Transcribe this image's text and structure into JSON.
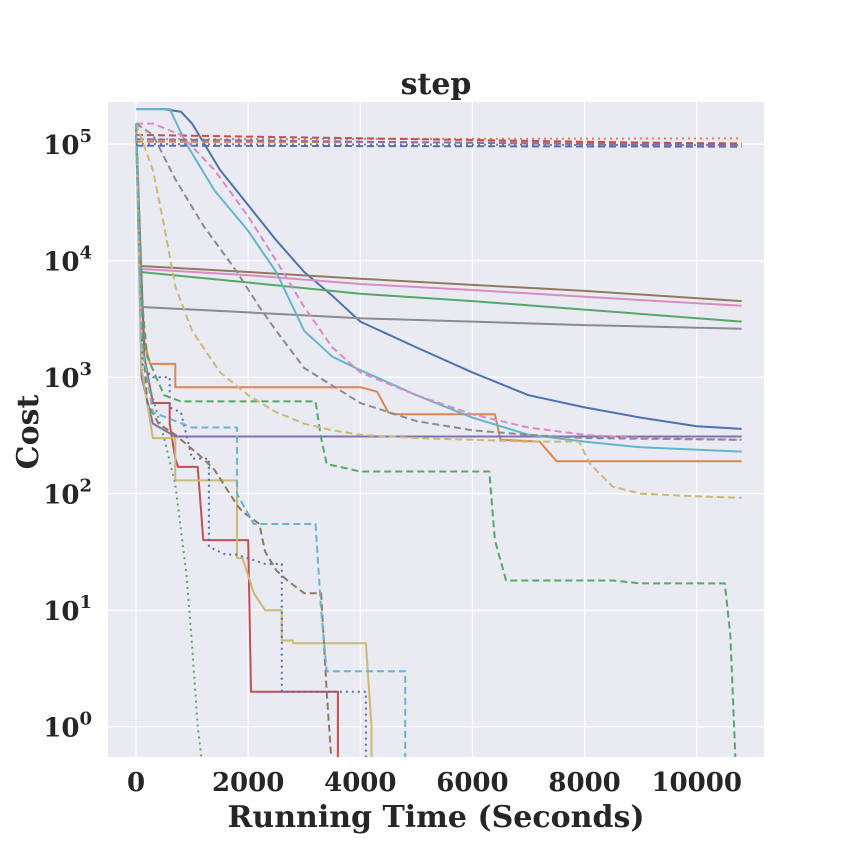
{
  "chart_data": {
    "type": "line",
    "title": "step",
    "xlabel": "Running Time (Seconds)",
    "ylabel": "Cost",
    "xscale": "linear",
    "yscale": "log",
    "xlim": [
      -500,
      11200
    ],
    "ylim": [
      0.55,
      230000
    ],
    "grid": true,
    "xticks": [
      0,
      2000,
      4000,
      6000,
      8000,
      10000
    ],
    "yticks": [
      {
        "value": 1,
        "base": "10",
        "exp": "0"
      },
      {
        "value": 10,
        "base": "10",
        "exp": "1"
      },
      {
        "value": 100,
        "base": "10",
        "exp": "2"
      },
      {
        "value": 1000,
        "base": "10",
        "exp": "3"
      },
      {
        "value": 10000,
        "base": "10",
        "exp": "4"
      },
      {
        "value": 100000,
        "base": "10",
        "exp": "5"
      }
    ],
    "colors": {
      "plot_background": "#eaeaf2",
      "grid": "#ffffff",
      "text": "#262626"
    },
    "series": [
      {
        "color": "#4c72b0",
        "style": "solid",
        "points": [
          [
            0,
            200000
          ],
          [
            500,
            200000
          ],
          [
            800,
            190000
          ],
          [
            1000,
            150000
          ],
          [
            1500,
            60000
          ],
          [
            2000,
            30000
          ],
          [
            2500,
            15000
          ],
          [
            3000,
            8000
          ],
          [
            3500,
            5000
          ],
          [
            4000,
            3000
          ],
          [
            5000,
            1800
          ],
          [
            6000,
            1100
          ],
          [
            7000,
            700
          ],
          [
            8000,
            550
          ],
          [
            9000,
            450
          ],
          [
            10000,
            380
          ],
          [
            10800,
            360
          ]
        ]
      },
      {
        "color": "#dd8452",
        "style": "solid",
        "points": [
          [
            0,
            150000
          ],
          [
            80,
            8000
          ],
          [
            150,
            2000
          ],
          [
            250,
            1300
          ],
          [
            700,
            1300
          ],
          [
            700,
            820
          ],
          [
            4000,
            820
          ],
          [
            4300,
            750
          ],
          [
            4500,
            500
          ],
          [
            4600,
            480
          ],
          [
            6400,
            480
          ],
          [
            6500,
            290
          ],
          [
            7200,
            280
          ],
          [
            7500,
            190
          ],
          [
            10800,
            190
          ]
        ]
      },
      {
        "color": "#55a868",
        "style": "solid",
        "points": [
          [
            0,
            150000
          ],
          [
            80,
            8000
          ],
          [
            2000,
            6500
          ],
          [
            4000,
            5200
          ],
          [
            6000,
            4500
          ],
          [
            8000,
            3800
          ],
          [
            10800,
            3000
          ]
        ]
      },
      {
        "color": "#c44e52",
        "style": "solid",
        "points": [
          [
            0,
            150000
          ],
          [
            150,
            1500
          ],
          [
            300,
            600
          ],
          [
            600,
            600
          ],
          [
            600,
            400
          ],
          [
            700,
            200
          ],
          [
            750,
            170
          ],
          [
            1100,
            170
          ],
          [
            1200,
            40
          ],
          [
            2000,
            40
          ],
          [
            2050,
            2
          ],
          [
            3600,
            2
          ],
          [
            3600,
            0.4
          ]
        ]
      },
      {
        "color": "#8172b3",
        "style": "solid",
        "points": [
          [
            0,
            150000
          ],
          [
            100,
            1000
          ],
          [
            300,
            400
          ],
          [
            700,
            310
          ],
          [
            10800,
            310
          ]
        ]
      },
      {
        "color": "#937860",
        "style": "solid",
        "points": [
          [
            0,
            150000
          ],
          [
            80,
            9000
          ],
          [
            2000,
            8000
          ],
          [
            4000,
            7000
          ],
          [
            6000,
            6200
          ],
          [
            8000,
            5500
          ],
          [
            10800,
            4500
          ]
        ]
      },
      {
        "color": "#da8bc3",
        "style": "solid",
        "points": [
          [
            0,
            150000
          ],
          [
            80,
            8500
          ],
          [
            2000,
            7500
          ],
          [
            4000,
            6300
          ],
          [
            6000,
            5600
          ],
          [
            8000,
            4900
          ],
          [
            10800,
            4100
          ]
        ]
      },
      {
        "color": "#8c8c8c",
        "style": "solid",
        "points": [
          [
            0,
            150000
          ],
          [
            100,
            4000
          ],
          [
            2000,
            3600
          ],
          [
            4000,
            3200
          ],
          [
            6000,
            3000
          ],
          [
            8000,
            2800
          ],
          [
            10800,
            2600
          ]
        ]
      },
      {
        "color": "#ccb974",
        "style": "solid",
        "points": [
          [
            0,
            150000
          ],
          [
            100,
            1200
          ],
          [
            300,
            300
          ],
          [
            700,
            300
          ],
          [
            700,
            130
          ],
          [
            1800,
            130
          ],
          [
            1800,
            28
          ],
          [
            1900,
            28
          ],
          [
            2100,
            14
          ],
          [
            2300,
            10
          ],
          [
            2600,
            10
          ],
          [
            2600,
            5.5
          ],
          [
            2800,
            5.5
          ],
          [
            2800,
            5.2
          ],
          [
            4100,
            5.2
          ],
          [
            4200,
            1
          ],
          [
            4200,
            0.4
          ]
        ]
      },
      {
        "color": "#64b5cd",
        "style": "solid",
        "points": [
          [
            0,
            200000
          ],
          [
            600,
            200000
          ],
          [
            900,
            100000
          ],
          [
            1400,
            40000
          ],
          [
            2000,
            18000
          ],
          [
            2500,
            8000
          ],
          [
            3000,
            2500
          ],
          [
            3500,
            1500
          ],
          [
            4000,
            1150
          ],
          [
            4500,
            900
          ],
          [
            5000,
            700
          ],
          [
            6000,
            450
          ],
          [
            7000,
            320
          ],
          [
            8000,
            280
          ],
          [
            9000,
            250
          ],
          [
            10800,
            230
          ]
        ]
      },
      {
        "color": "#4c72b0",
        "style": "dotted",
        "points": [
          [
            0,
            150000
          ],
          [
            120,
            1200
          ],
          [
            300,
            1000
          ],
          [
            600,
            1000
          ],
          [
            600,
            550
          ],
          [
            800,
            500
          ],
          [
            1000,
            200
          ],
          [
            1300,
            200
          ],
          [
            1300,
            35
          ],
          [
            1600,
            30
          ],
          [
            1800,
            30
          ],
          [
            2300,
            25
          ],
          [
            2600,
            25
          ],
          [
            2600,
            2
          ],
          [
            4100,
            2
          ],
          [
            4100,
            0.4
          ]
        ]
      },
      {
        "color": "#dd8452",
        "style": "dotted",
        "points": [
          [
            0,
            110000
          ],
          [
            10800,
            112000
          ]
        ]
      },
      {
        "color": "#55a868",
        "style": "dotted",
        "points": [
          [
            0,
            150000
          ],
          [
            80,
            6000
          ],
          [
            150,
            1500
          ],
          [
            250,
            800
          ],
          [
            500,
            300
          ],
          [
            700,
            120
          ],
          [
            900,
            20
          ],
          [
            1000,
            5
          ],
          [
            1100,
            1
          ],
          [
            1200,
            0.4
          ]
        ]
      },
      {
        "color": "#8172b3",
        "style": "dotted",
        "points": [
          [
            0,
            100000
          ],
          [
            10800,
            98000
          ]
        ]
      },
      {
        "color": "#4c72b0",
        "style": "dashed",
        "points": [
          [
            0,
            97000
          ],
          [
            10800,
            95000
          ]
        ]
      },
      {
        "color": "#dd8452",
        "style": "dashed",
        "points": [
          [
            0,
            105000
          ],
          [
            10800,
            102000
          ]
        ]
      },
      {
        "color": "#55a868",
        "style": "dashed",
        "points": [
          [
            0,
            150000
          ],
          [
            50,
            30000
          ],
          [
            100,
            5000
          ],
          [
            200,
            1500
          ],
          [
            500,
            700
          ],
          [
            800,
            620
          ],
          [
            3200,
            620
          ],
          [
            3300,
            300
          ],
          [
            3400,
            180
          ],
          [
            4000,
            155
          ],
          [
            6300,
            155
          ],
          [
            6400,
            40
          ],
          [
            6600,
            18
          ],
          [
            8500,
            18
          ],
          [
            9000,
            17
          ],
          [
            10500,
            17
          ],
          [
            10600,
            6
          ],
          [
            10700,
            0.4
          ]
        ]
      },
      {
        "color": "#c44e52",
        "style": "dashed",
        "points": [
          [
            0,
            120000
          ],
          [
            10800,
            100000
          ]
        ]
      },
      {
        "color": "#8172b3",
        "style": "dashed",
        "points": [
          [
            0,
            110000
          ],
          [
            10800,
            97000
          ]
        ]
      },
      {
        "color": "#937860",
        "style": "dashed",
        "points": [
          [
            0,
            150000
          ],
          [
            100,
            3000
          ],
          [
            200,
            600
          ],
          [
            400,
            400
          ],
          [
            700,
            320
          ],
          [
            1200,
            200
          ],
          [
            1400,
            160
          ],
          [
            1800,
            80
          ],
          [
            1900,
            70
          ],
          [
            2200,
            55
          ],
          [
            2300,
            32
          ],
          [
            2500,
            22
          ],
          [
            2700,
            18
          ],
          [
            3000,
            14
          ],
          [
            3300,
            14
          ],
          [
            3400,
            2
          ],
          [
            3500,
            0.4
          ]
        ]
      },
      {
        "color": "#da8bc3",
        "style": "dashed",
        "points": [
          [
            0,
            150000
          ],
          [
            300,
            150000
          ],
          [
            800,
            120000
          ],
          [
            1400,
            60000
          ],
          [
            2000,
            24000
          ],
          [
            2500,
            10000
          ],
          [
            3000,
            4000
          ],
          [
            3500,
            1800
          ],
          [
            4000,
            1100
          ],
          [
            5000,
            700
          ],
          [
            6000,
            480
          ],
          [
            7000,
            370
          ],
          [
            8000,
            320
          ],
          [
            9000,
            300
          ],
          [
            10800,
            290
          ]
        ]
      },
      {
        "color": "#8c8c8c",
        "style": "dashed",
        "points": [
          [
            0,
            150000
          ],
          [
            300,
            120000
          ],
          [
            700,
            50000
          ],
          [
            1200,
            20000
          ],
          [
            1800,
            8000
          ],
          [
            2200,
            4000
          ],
          [
            2500,
            2500
          ],
          [
            3000,
            1200
          ],
          [
            4000,
            600
          ],
          [
            5000,
            420
          ],
          [
            6000,
            350
          ],
          [
            7000,
            320
          ],
          [
            8000,
            300
          ],
          [
            10800,
            290
          ]
        ]
      },
      {
        "color": "#ccb974",
        "style": "dashed",
        "points": [
          [
            0,
            150000
          ],
          [
            300,
            60000
          ],
          [
            500,
            20000
          ],
          [
            700,
            6000
          ],
          [
            1000,
            2500
          ],
          [
            1500,
            1100
          ],
          [
            2000,
            700
          ],
          [
            2500,
            500
          ],
          [
            3000,
            400
          ],
          [
            3500,
            350
          ],
          [
            4000,
            320
          ],
          [
            5000,
            300
          ],
          [
            6000,
            290
          ],
          [
            7000,
            280
          ],
          [
            7900,
            280
          ],
          [
            8100,
            180
          ],
          [
            8500,
            115
          ],
          [
            9000,
            100
          ],
          [
            10000,
            95
          ],
          [
            10800,
            92
          ]
        ]
      },
      {
        "color": "#64b5cd",
        "style": "dashed",
        "points": [
          [
            0,
            150000
          ],
          [
            100,
            2000
          ],
          [
            300,
            500
          ],
          [
            1000,
            370
          ],
          [
            1800,
            370
          ],
          [
            1800,
            100
          ],
          [
            2100,
            55
          ],
          [
            3200,
            55
          ],
          [
            3300,
            10
          ],
          [
            3400,
            3
          ],
          [
            4800,
            3
          ],
          [
            4800,
            0.4
          ]
        ]
      }
    ]
  }
}
